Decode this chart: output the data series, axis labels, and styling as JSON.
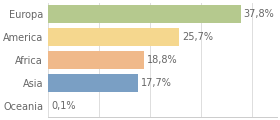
{
  "categories": [
    "Europa",
    "America",
    "Africa",
    "Asia",
    "Oceania"
  ],
  "values": [
    37.8,
    25.7,
    18.8,
    17.7,
    0.1
  ],
  "labels": [
    "37,8%",
    "25,7%",
    "18,8%",
    "17,7%",
    "0,1%"
  ],
  "bar_colors": [
    "#b5c98e",
    "#f5d78e",
    "#f0b98a",
    "#7a9fc4",
    "#dddddd"
  ],
  "background_color": "#ffffff",
  "xlim": [
    0,
    45
  ],
  "bar_height": 0.78,
  "label_fontsize": 7.0,
  "tick_fontsize": 7.0,
  "grid_color": "#dddddd",
  "grid_xticks": [
    0,
    10,
    20,
    30,
    40
  ]
}
